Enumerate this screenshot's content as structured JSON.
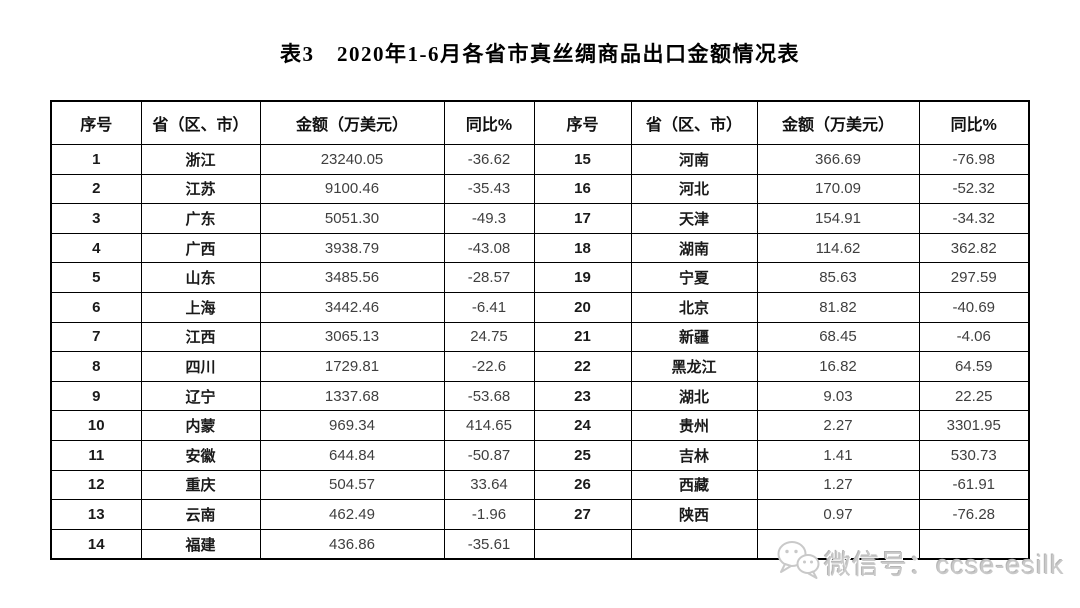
{
  "title": "表3　2020年1-6月各省市真丝绸商品出口金额情况表",
  "table": {
    "headers": [
      "序号",
      "省（区、市）",
      "金额（万美元）",
      "同比%"
    ],
    "left_rows": [
      {
        "no": "1",
        "province": "浙江",
        "amount": "23240.05",
        "yoy": "-36.62"
      },
      {
        "no": "2",
        "province": "江苏",
        "amount": "9100.46",
        "yoy": "-35.43"
      },
      {
        "no": "3",
        "province": "广东",
        "amount": "5051.30",
        "yoy": "-49.3"
      },
      {
        "no": "4",
        "province": "广西",
        "amount": "3938.79",
        "yoy": "-43.08"
      },
      {
        "no": "5",
        "province": "山东",
        "amount": "3485.56",
        "yoy": "-28.57"
      },
      {
        "no": "6",
        "province": "上海",
        "amount": "3442.46",
        "yoy": "-6.41"
      },
      {
        "no": "7",
        "province": "江西",
        "amount": "3065.13",
        "yoy": "24.75"
      },
      {
        "no": "8",
        "province": "四川",
        "amount": "1729.81",
        "yoy": "-22.6"
      },
      {
        "no": "9",
        "province": "辽宁",
        "amount": "1337.68",
        "yoy": "-53.68"
      },
      {
        "no": "10",
        "province": "内蒙",
        "amount": "969.34",
        "yoy": "414.65"
      },
      {
        "no": "11",
        "province": "安徽",
        "amount": "644.84",
        "yoy": "-50.87"
      },
      {
        "no": "12",
        "province": "重庆",
        "amount": "504.57",
        "yoy": "33.64"
      },
      {
        "no": "13",
        "province": "云南",
        "amount": "462.49",
        "yoy": "-1.96"
      },
      {
        "no": "14",
        "province": "福建",
        "amount": "436.86",
        "yoy": "-35.61"
      }
    ],
    "right_rows": [
      {
        "no": "15",
        "province": "河南",
        "amount": "366.69",
        "yoy": "-76.98"
      },
      {
        "no": "16",
        "province": "河北",
        "amount": "170.09",
        "yoy": "-52.32"
      },
      {
        "no": "17",
        "province": "天津",
        "amount": "154.91",
        "yoy": "-34.32"
      },
      {
        "no": "18",
        "province": "湖南",
        "amount": "114.62",
        "yoy": "362.82"
      },
      {
        "no": "19",
        "province": "宁夏",
        "amount": "85.63",
        "yoy": "297.59"
      },
      {
        "no": "20",
        "province": "北京",
        "amount": "81.82",
        "yoy": "-40.69"
      },
      {
        "no": "21",
        "province": "新疆",
        "amount": "68.45",
        "yoy": "-4.06"
      },
      {
        "no": "22",
        "province": "黑龙江",
        "amount": "16.82",
        "yoy": "64.59"
      },
      {
        "no": "23",
        "province": "湖北",
        "amount": "9.03",
        "yoy": "22.25"
      },
      {
        "no": "24",
        "province": "贵州",
        "amount": "2.27",
        "yoy": "3301.95"
      },
      {
        "no": "25",
        "province": "吉林",
        "amount": "1.41",
        "yoy": "530.73"
      },
      {
        "no": "26",
        "province": "西藏",
        "amount": "1.27",
        "yoy": "-61.91"
      },
      {
        "no": "27",
        "province": "陕西",
        "amount": "0.97",
        "yoy": "-76.28"
      }
    ]
  },
  "watermark": {
    "icon": "wechat-icon",
    "text": "微信号：ccse-esilk"
  },
  "colors": {
    "background": "#ffffff",
    "border": "#000000",
    "text_strong": "#1a1a1a",
    "text_number": "#3f3f3f",
    "watermark": "#c9c9c9"
  }
}
